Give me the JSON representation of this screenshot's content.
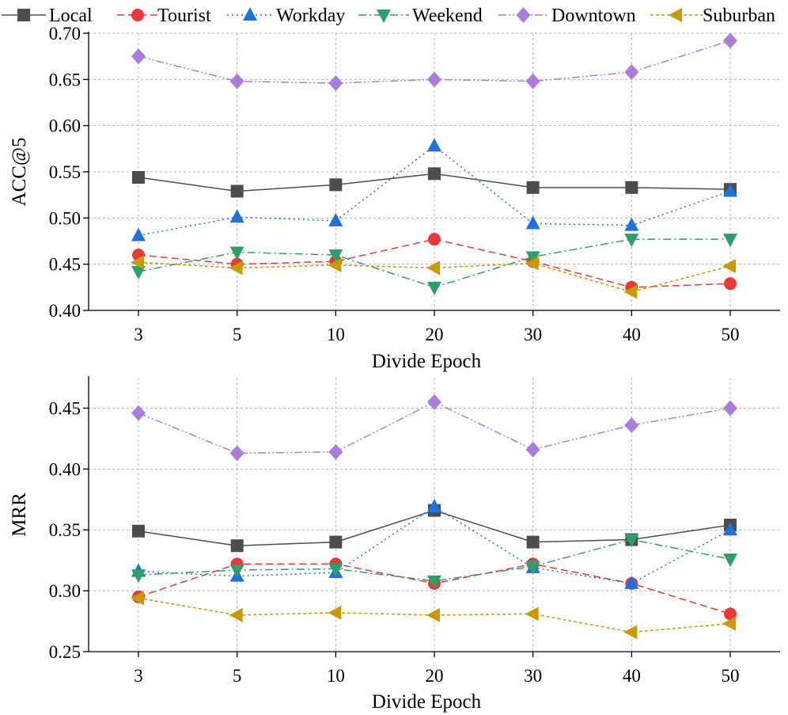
{
  "chart_data": [
    {
      "type": "line",
      "xlabel": "Divide Epoch",
      "ylabel": "ACC@5",
      "categories": [
        "3",
        "5",
        "10",
        "20",
        "30",
        "40",
        "50"
      ],
      "ylim": [
        0.4,
        0.7
      ],
      "yticks": [
        "0.40",
        "0.45",
        "0.50",
        "0.55",
        "0.60",
        "0.65",
        "0.70"
      ],
      "grid": true,
      "series": [
        {
          "name": "Local",
          "values": [
            0.544,
            0.529,
            0.536,
            0.548,
            0.533,
            0.533,
            0.531
          ]
        },
        {
          "name": "Tourist",
          "values": [
            0.46,
            0.45,
            0.453,
            0.477,
            0.453,
            0.425,
            0.429
          ]
        },
        {
          "name": "Workday",
          "values": [
            0.481,
            0.501,
            0.497,
            0.578,
            0.494,
            0.492,
            0.529
          ]
        },
        {
          "name": "Weekend",
          "values": [
            0.442,
            0.463,
            0.46,
            0.425,
            0.458,
            0.477,
            0.477
          ]
        },
        {
          "name": "Downtown",
          "values": [
            0.675,
            0.648,
            0.646,
            0.65,
            0.648,
            0.658,
            0.692
          ]
        },
        {
          "name": "Suburban",
          "values": [
            0.452,
            0.446,
            0.449,
            0.446,
            0.451,
            0.42,
            0.448
          ]
        }
      ]
    },
    {
      "type": "line",
      "xlabel": "Divide Epoch",
      "ylabel": "MRR",
      "categories": [
        "3",
        "5",
        "10",
        "20",
        "30",
        "40",
        "50"
      ],
      "ylim": [
        0.25,
        0.475
      ],
      "yticks": [
        "0.25",
        "0.30",
        "0.35",
        "0.40",
        "0.45"
      ],
      "grid": true,
      "series": [
        {
          "name": "Local",
          "values": [
            0.349,
            0.337,
            0.34,
            0.366,
            0.34,
            0.342,
            0.354
          ]
        },
        {
          "name": "Tourist",
          "values": [
            0.295,
            0.322,
            0.322,
            0.306,
            0.322,
            0.306,
            0.281
          ]
        },
        {
          "name": "Workday",
          "values": [
            0.316,
            0.312,
            0.315,
            0.369,
            0.319,
            0.306,
            0.35
          ]
        },
        {
          "name": "Weekend",
          "values": [
            0.313,
            0.317,
            0.318,
            0.308,
            0.32,
            0.342,
            0.326
          ]
        },
        {
          "name": "Downtown",
          "values": [
            0.446,
            0.413,
            0.414,
            0.455,
            0.416,
            0.436,
            0.45
          ]
        },
        {
          "name": "Suburban",
          "values": [
            0.294,
            0.28,
            0.282,
            0.28,
            0.281,
            0.266,
            0.273
          ]
        }
      ]
    }
  ],
  "legend": {
    "placement": "top",
    "entries": [
      {
        "name": "Local",
        "color": "#4d4d4d",
        "dash": "solid",
        "marker": "square"
      },
      {
        "name": "Tourist",
        "color": "#e8393a",
        "dash": "dash",
        "marker": "circle"
      },
      {
        "name": "Workday",
        "color": "#1f72de",
        "dash": "dot",
        "marker": "triangle-up"
      },
      {
        "name": "Weekend",
        "color": "#2e9e6a",
        "dash": "dashdot",
        "marker": "triangle-down"
      },
      {
        "name": "Downtown",
        "color": "#ab7cde",
        "dash": "dashdotdot",
        "marker": "diamond"
      },
      {
        "name": "Suburban",
        "color": "#c99a06",
        "dash": "shortdash",
        "marker": "triangle-left"
      }
    ]
  }
}
